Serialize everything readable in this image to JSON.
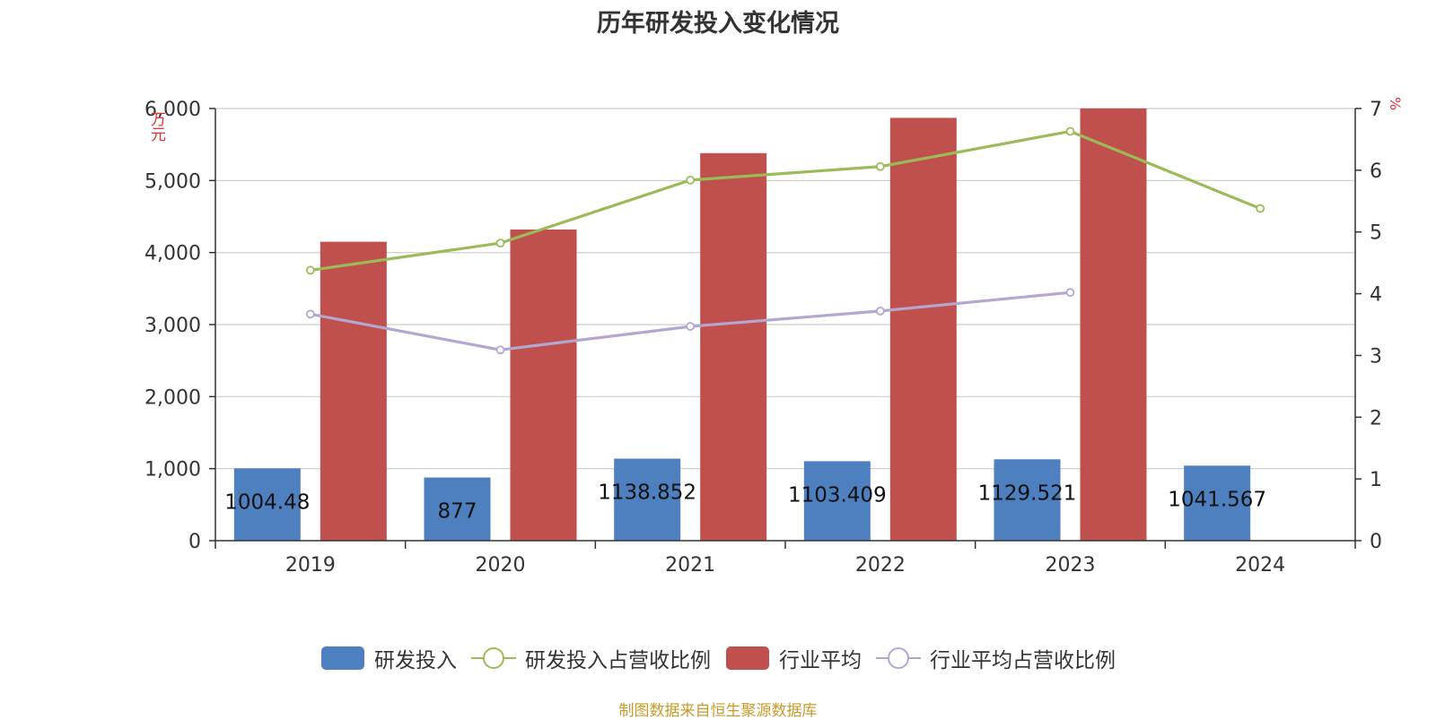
{
  "title": "历年研发投入变化情况",
  "colors": {
    "rd_bar": "#4e7fbf",
    "industry_bar": "#c0504d",
    "rd_ratio_line": "#9bbb59",
    "industry_ratio_line": "#b5a6d0",
    "axis_unit": "#e8303a",
    "footer": "#c89a2a",
    "grid": "#cccccc",
    "axis": "#333333"
  },
  "axes": {
    "left_unit": "万元",
    "right_unit": "%"
  },
  "legend": [
    {
      "label": "研发投入",
      "symbol": "bar",
      "color": "#4e7fbf"
    },
    {
      "label": "研发投入占营收比例",
      "symbol": "line",
      "color": "#9bbb59"
    },
    {
      "label": "行业平均",
      "symbol": "bar",
      "color": "#c0504d"
    },
    {
      "label": "行业平均占营收比例",
      "symbol": "line",
      "color": "#b5a6d0"
    }
  ],
  "footer": "制图数据来自恒生聚源数据库",
  "chart_data": {
    "type": "bar",
    "categories": [
      "2019",
      "2020",
      "2021",
      "2022",
      "2023",
      "2024"
    ],
    "series": [
      {
        "name": "研发投入",
        "type": "bar",
        "axis": "left",
        "values": [
          1004.48,
          877,
          1138.852,
          1103.409,
          1129.521,
          1041.567
        ],
        "labels": [
          "1004.48",
          "877",
          "1138.852",
          "1103.409",
          "1129.521",
          "1041.567"
        ]
      },
      {
        "name": "行业平均",
        "type": "bar",
        "axis": "left",
        "values": [
          4150,
          4320,
          5380,
          5870,
          6000,
          null
        ]
      },
      {
        "name": "研发投入占营收比例",
        "type": "line",
        "axis": "right",
        "values": [
          4.38,
          4.82,
          5.84,
          6.06,
          6.63,
          5.38
        ]
      },
      {
        "name": "行业平均占营收比例",
        "type": "line",
        "axis": "right",
        "values": [
          3.67,
          3.09,
          3.47,
          3.72,
          4.02,
          null
        ]
      }
    ],
    "y_left": {
      "min": 0,
      "max": 6000,
      "ticks": [
        0,
        1000,
        2000,
        3000,
        4000,
        5000,
        6000
      ],
      "tick_labels": [
        "0",
        "1,000",
        "2,000",
        "3,000",
        "4,000",
        "5,000",
        "6,000"
      ]
    },
    "y_right": {
      "min": 0,
      "max": 7,
      "ticks": [
        0,
        1,
        2,
        3,
        4,
        5,
        6,
        7
      ],
      "tick_labels": [
        "0",
        "1",
        "2",
        "3",
        "4",
        "5",
        "6",
        "7"
      ]
    },
    "grid": true,
    "legend_position": "bottom"
  }
}
